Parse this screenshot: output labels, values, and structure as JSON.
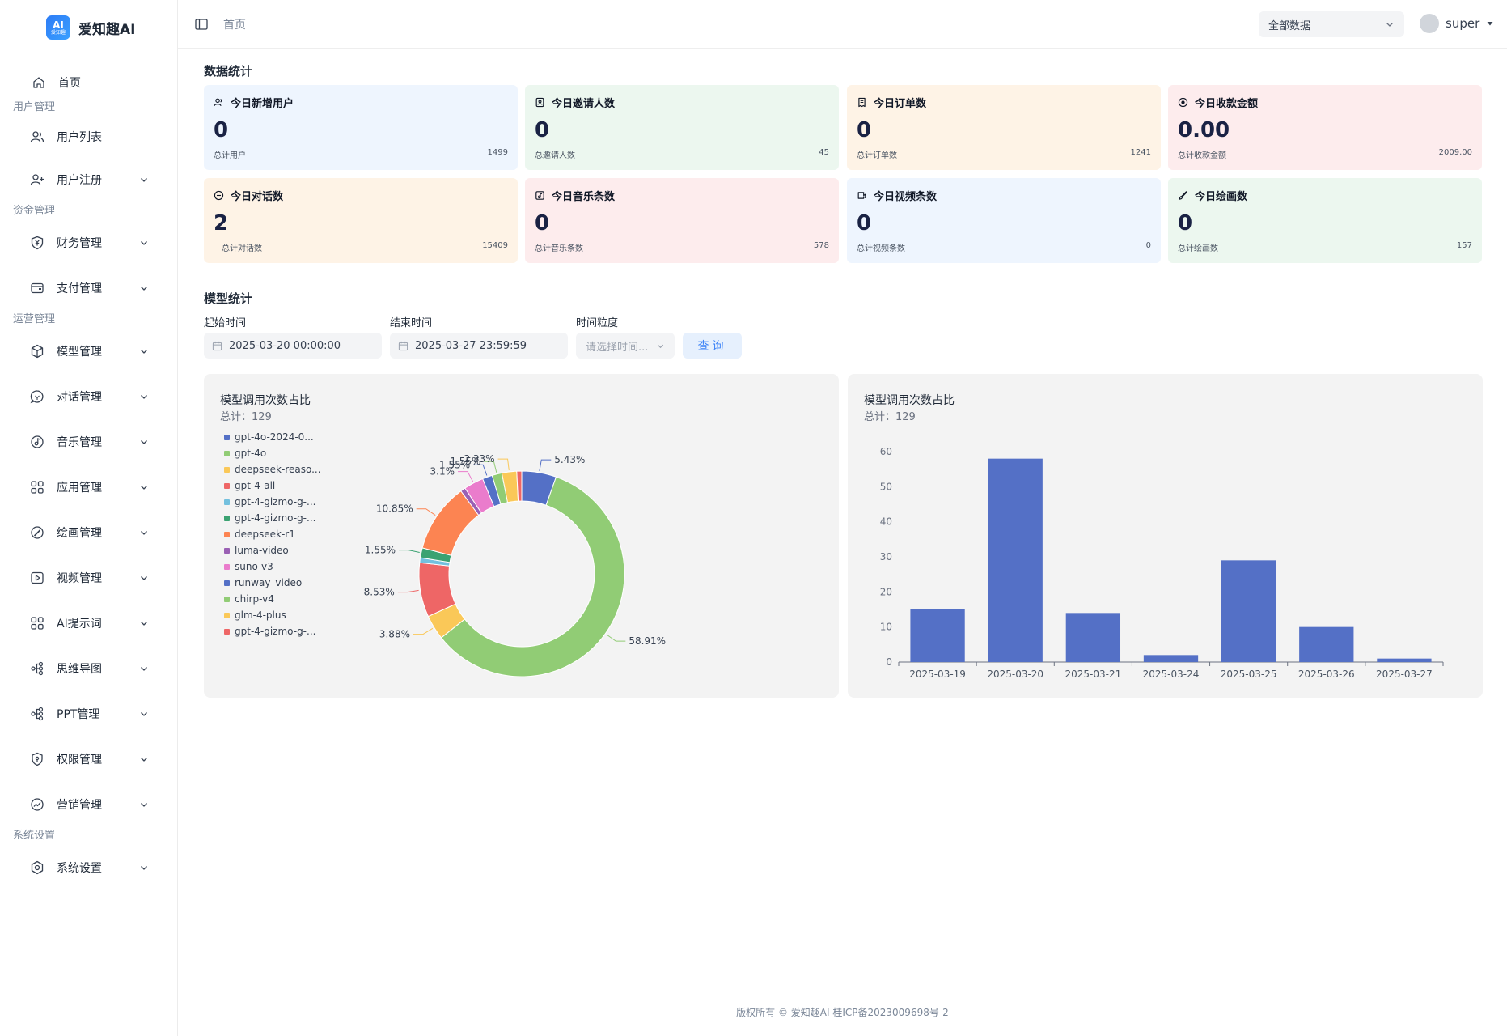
{
  "brand": {
    "logo_mark": "AI",
    "logo_mark_sub": "爱知趣",
    "name": "爱知趣AI"
  },
  "sidebar": {
    "home": "首页",
    "groups": [
      {
        "label": "用户管理",
        "items": [
          {
            "label": "用户列表",
            "icon": "users-icon"
          },
          {
            "label": "用户注册",
            "icon": "user-add-icon"
          }
        ]
      },
      {
        "label": "资金管理",
        "items": [
          {
            "label": "财务管理",
            "icon": "yen-shield-icon"
          },
          {
            "label": "支付管理",
            "icon": "wallet-icon"
          }
        ]
      },
      {
        "label": "运营管理",
        "items": [
          {
            "label": "模型管理",
            "icon": "model-icon"
          },
          {
            "label": "对话管理",
            "icon": "chat-icon"
          },
          {
            "label": "音乐管理",
            "icon": "music-icon"
          },
          {
            "label": "应用管理",
            "icon": "apps-icon"
          },
          {
            "label": "绘画管理",
            "icon": "paint-icon"
          },
          {
            "label": "视频管理",
            "icon": "video-icon"
          },
          {
            "label": "AI提示词",
            "icon": "prompt-icon"
          },
          {
            "label": "思维导图",
            "icon": "mindmap-icon"
          },
          {
            "label": "PPT管理",
            "icon": "ppt-icon"
          },
          {
            "label": "权限管理",
            "icon": "permission-icon"
          },
          {
            "label": "营销管理",
            "icon": "marketing-icon"
          }
        ]
      },
      {
        "label": "系统设置",
        "items": [
          {
            "label": "系统设置",
            "icon": "settings-icon"
          }
        ]
      }
    ]
  },
  "header": {
    "breadcrumb": "首页",
    "data_select": "全部数据",
    "username": "super"
  },
  "stats": {
    "title": "数据统计",
    "cards": [
      {
        "title": "今日新增用户",
        "value": "0",
        "foot_label": "总计用户",
        "foot_value": "1499",
        "color": "#eef5fe"
      },
      {
        "title": "今日邀请人数",
        "value": "0",
        "foot_label": "总邀请人数",
        "foot_value": "45",
        "color": "#ecf7ef"
      },
      {
        "title": "今日订单数",
        "value": "0",
        "foot_label": "总计订单数",
        "foot_value": "1241",
        "color": "#fef3e6"
      },
      {
        "title": "今日收款金额",
        "value": "0.00",
        "foot_label": "总计收款金额",
        "foot_value": "2009.00",
        "color": "#fdeced"
      },
      {
        "title": "今日对话数",
        "value": "2",
        "foot_label": "总计对话数",
        "foot_value": "15409",
        "color": "#fef3e6"
      },
      {
        "title": "今日音乐条数",
        "value": "0",
        "foot_label": "总计音乐条数",
        "foot_value": "578",
        "color": "#fdeced"
      },
      {
        "title": "今日视频条数",
        "value": "0",
        "foot_label": "总计视频条数",
        "foot_value": "0",
        "color": "#eef5fe"
      },
      {
        "title": "今日绘画数",
        "value": "0",
        "foot_label": "总计绘画数",
        "foot_value": "157",
        "color": "#ecf7ef"
      }
    ]
  },
  "model_stats": {
    "title": "模型统计",
    "start_label": "起始时间",
    "start_value": "2025-03-20 00:00:00",
    "end_label": "结束时间",
    "end_value": "2025-03-27 23:59:59",
    "granularity_label": "时间粒度",
    "granularity_placeholder": "请选择时间...",
    "query_label": "查询"
  },
  "chart_data": [
    {
      "type": "pie",
      "title": "模型调用次数占比",
      "subtitle": "总计：129",
      "legend_position": "left",
      "slices": [
        {
          "name": "gpt-4o-2024-0...",
          "percent": 5.43,
          "color": "#5470c6"
        },
        {
          "name": "gpt-4o",
          "percent": 58.91,
          "color": "#91cc75"
        },
        {
          "name": "deepseek-reaso...",
          "percent": 3.88,
          "color": "#fac858"
        },
        {
          "name": "gpt-4-all",
          "percent": 8.53,
          "color": "#ee6666"
        },
        {
          "name": "gpt-4-gizmo-g-...",
          "percent": 0.78,
          "color": "#73c0de"
        },
        {
          "name": "gpt-4-gizmo-g-...",
          "percent": 1.55,
          "color": "#3ba272"
        },
        {
          "name": "deepseek-r1",
          "percent": 10.85,
          "color": "#fc8452"
        },
        {
          "name": "luma-video",
          "percent": 0.78,
          "color": "#9a60b4"
        },
        {
          "name": "suno-v3",
          "percent": 3.1,
          "color": "#ea7ccc"
        },
        {
          "name": "runway_video",
          "percent": 1.55,
          "color": "#5470c6"
        },
        {
          "name": "chirp-v4",
          "percent": 1.55,
          "color": "#91cc75"
        },
        {
          "name": "glm-4-plus",
          "percent": 2.33,
          "color": "#fac858"
        },
        {
          "name": "gpt-4-gizmo-g-...",
          "percent": 0.78,
          "color": "#ee6666"
        }
      ],
      "data_labels": [
        "5.43%",
        "58.91%",
        "3.88%",
        "8.53%",
        "1.55%",
        "10.85%",
        "3.1%",
        "2.33%"
      ]
    },
    {
      "type": "bar",
      "title": "模型调用次数占比",
      "subtitle": "总计：129",
      "categories": [
        "2025-03-19",
        "2025-03-20",
        "2025-03-21",
        "2025-03-24",
        "2025-03-25",
        "2025-03-26",
        "2025-03-27"
      ],
      "values": [
        15,
        58,
        14,
        2,
        29,
        10,
        1
      ],
      "ylim": [
        0,
        60
      ],
      "yticks": [
        0,
        10,
        20,
        30,
        40,
        50,
        60
      ],
      "grid": false,
      "color": "#5470c6"
    }
  ],
  "footer": {
    "text": "版权所有 © 爱知趣AI   桂ICP备2023009698号-2"
  }
}
